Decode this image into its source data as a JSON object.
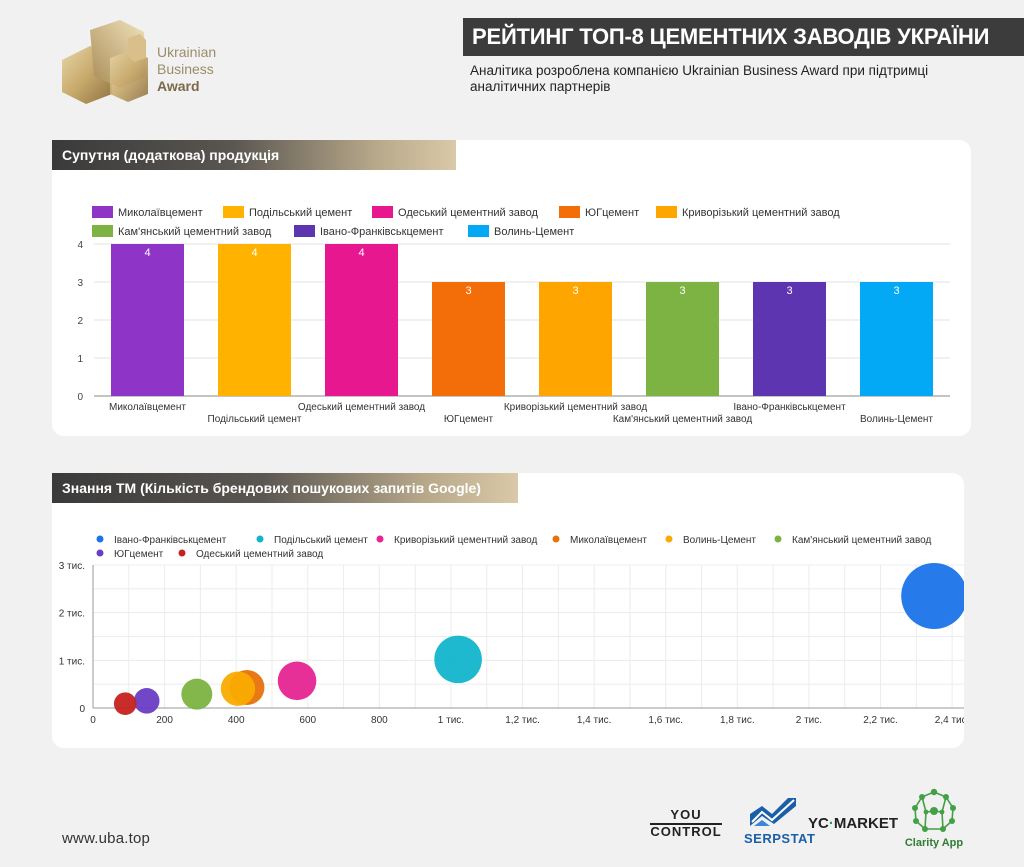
{
  "header": {
    "logo_lines": [
      "Ukrainian",
      "Business",
      "Award"
    ],
    "title": "РЕЙТИНГ ТОП-8 ЦЕМЕНТНИХ ЗАВОДІВ УКРАЇНИ",
    "subtitle": "Аналітика розроблена компанією Ukrainian Business Award при підтримці аналітичних партнерів"
  },
  "sections": {
    "bar_title": "Супутня (додаткова) продукція",
    "bubble_title": "Знання ТМ (Кількість брендових пошукових запитів Google)"
  },
  "footer": {
    "url": "www.uba.top",
    "partners": [
      "YOU CONTROL",
      "SERPSTAT",
      "YC·MARKET",
      "Clarity App"
    ]
  },
  "colors": {
    "Миколаївцемент": "#8e35c8",
    "Подільський цемент": "#ffb300",
    "Одеський цементний завод": "#e6178f",
    "ЮГцемент": "#f36d08",
    "Криворізький цементний завод": "#ffa500",
    "Кам'янський цементний завод": "#7cb342",
    "Івано-Франківськцемент": "#5e35b1",
    "Волинь-Цемент": "#03a9f4"
  },
  "chart_data": [
    {
      "type": "bar",
      "categories": [
        "Миколаївцемент",
        "Подільський цемент",
        "Одеський цементний завод",
        "ЮГцемент",
        "Криворізький цементний завод",
        "Кам'янський цементний завод",
        "Івано-Франківськцемент",
        "Волинь-Цемент"
      ],
      "values": [
        4,
        4,
        4,
        3,
        3,
        3,
        3,
        3
      ],
      "data_labels": [
        "4",
        "4",
        "4",
        "3",
        "3",
        "3",
        "3",
        "3"
      ],
      "legend": [
        "Миколаївцемент",
        "Подільський цемент",
        "Одеський цементний завод",
        "ЮГцемент",
        "Криворізький цементний завод",
        "Кам'янський цементний завод",
        "Івано-Франківськцемент",
        "Волинь-Цемент"
      ],
      "legend_position": "top",
      "ylim": [
        0,
        4
      ],
      "yticks": [
        "0",
        "1",
        "2",
        "3",
        "4"
      ],
      "grid": true
    },
    {
      "type": "scatter",
      "series": [
        {
          "name": "Івано-Франківськцемент",
          "x": 2350,
          "y": 2350,
          "color": "#1a73e8"
        },
        {
          "name": "Подільський цемент",
          "x": 1020,
          "y": 1020,
          "color": "#12b5cb"
        },
        {
          "name": "Криворізький цементний завод",
          "x": 570,
          "y": 570,
          "color": "#e52592"
        },
        {
          "name": "Миколаївцемент",
          "x": 430,
          "y": 430,
          "color": "#e8710a"
        },
        {
          "name": "Волинь-Цемент",
          "x": 405,
          "y": 405,
          "color": "#f9ab00"
        },
        {
          "name": "Кам'янський цементний завод",
          "x": 290,
          "y": 290,
          "color": "#7cb342"
        },
        {
          "name": "ЮГцемент",
          "x": 150,
          "y": 150,
          "color": "#6a3dc4"
        },
        {
          "name": "Одеський цементний завод",
          "x": 90,
          "y": 90,
          "color": "#c5221f"
        }
      ],
      "xlim": [
        0,
        2450
      ],
      "ylim": [
        0,
        3000
      ],
      "xticks": [
        {
          "v": 0,
          "label": "0"
        },
        {
          "v": 200,
          "label": "200"
        },
        {
          "v": 400,
          "label": "400"
        },
        {
          "v": 600,
          "label": "600"
        },
        {
          "v": 800,
          "label": "800"
        },
        {
          "v": 1000,
          "label": "1 тис."
        },
        {
          "v": 1200,
          "label": "1,2 тис."
        },
        {
          "v": 1400,
          "label": "1,4 тис."
        },
        {
          "v": 1600,
          "label": "1,6 тис."
        },
        {
          "v": 1800,
          "label": "1,8 тис."
        },
        {
          "v": 2000,
          "label": "2 тис."
        },
        {
          "v": 2200,
          "label": "2,2 тис."
        },
        {
          "v": 2400,
          "label": "2,4 тис."
        }
      ],
      "yticks": [
        {
          "v": 0,
          "label": "0"
        },
        {
          "v": 1000,
          "label": "1 тис."
        },
        {
          "v": 2000,
          "label": "2 тис."
        },
        {
          "v": 3000,
          "label": "3 тис."
        }
      ],
      "legend_position": "top",
      "grid": true
    }
  ]
}
